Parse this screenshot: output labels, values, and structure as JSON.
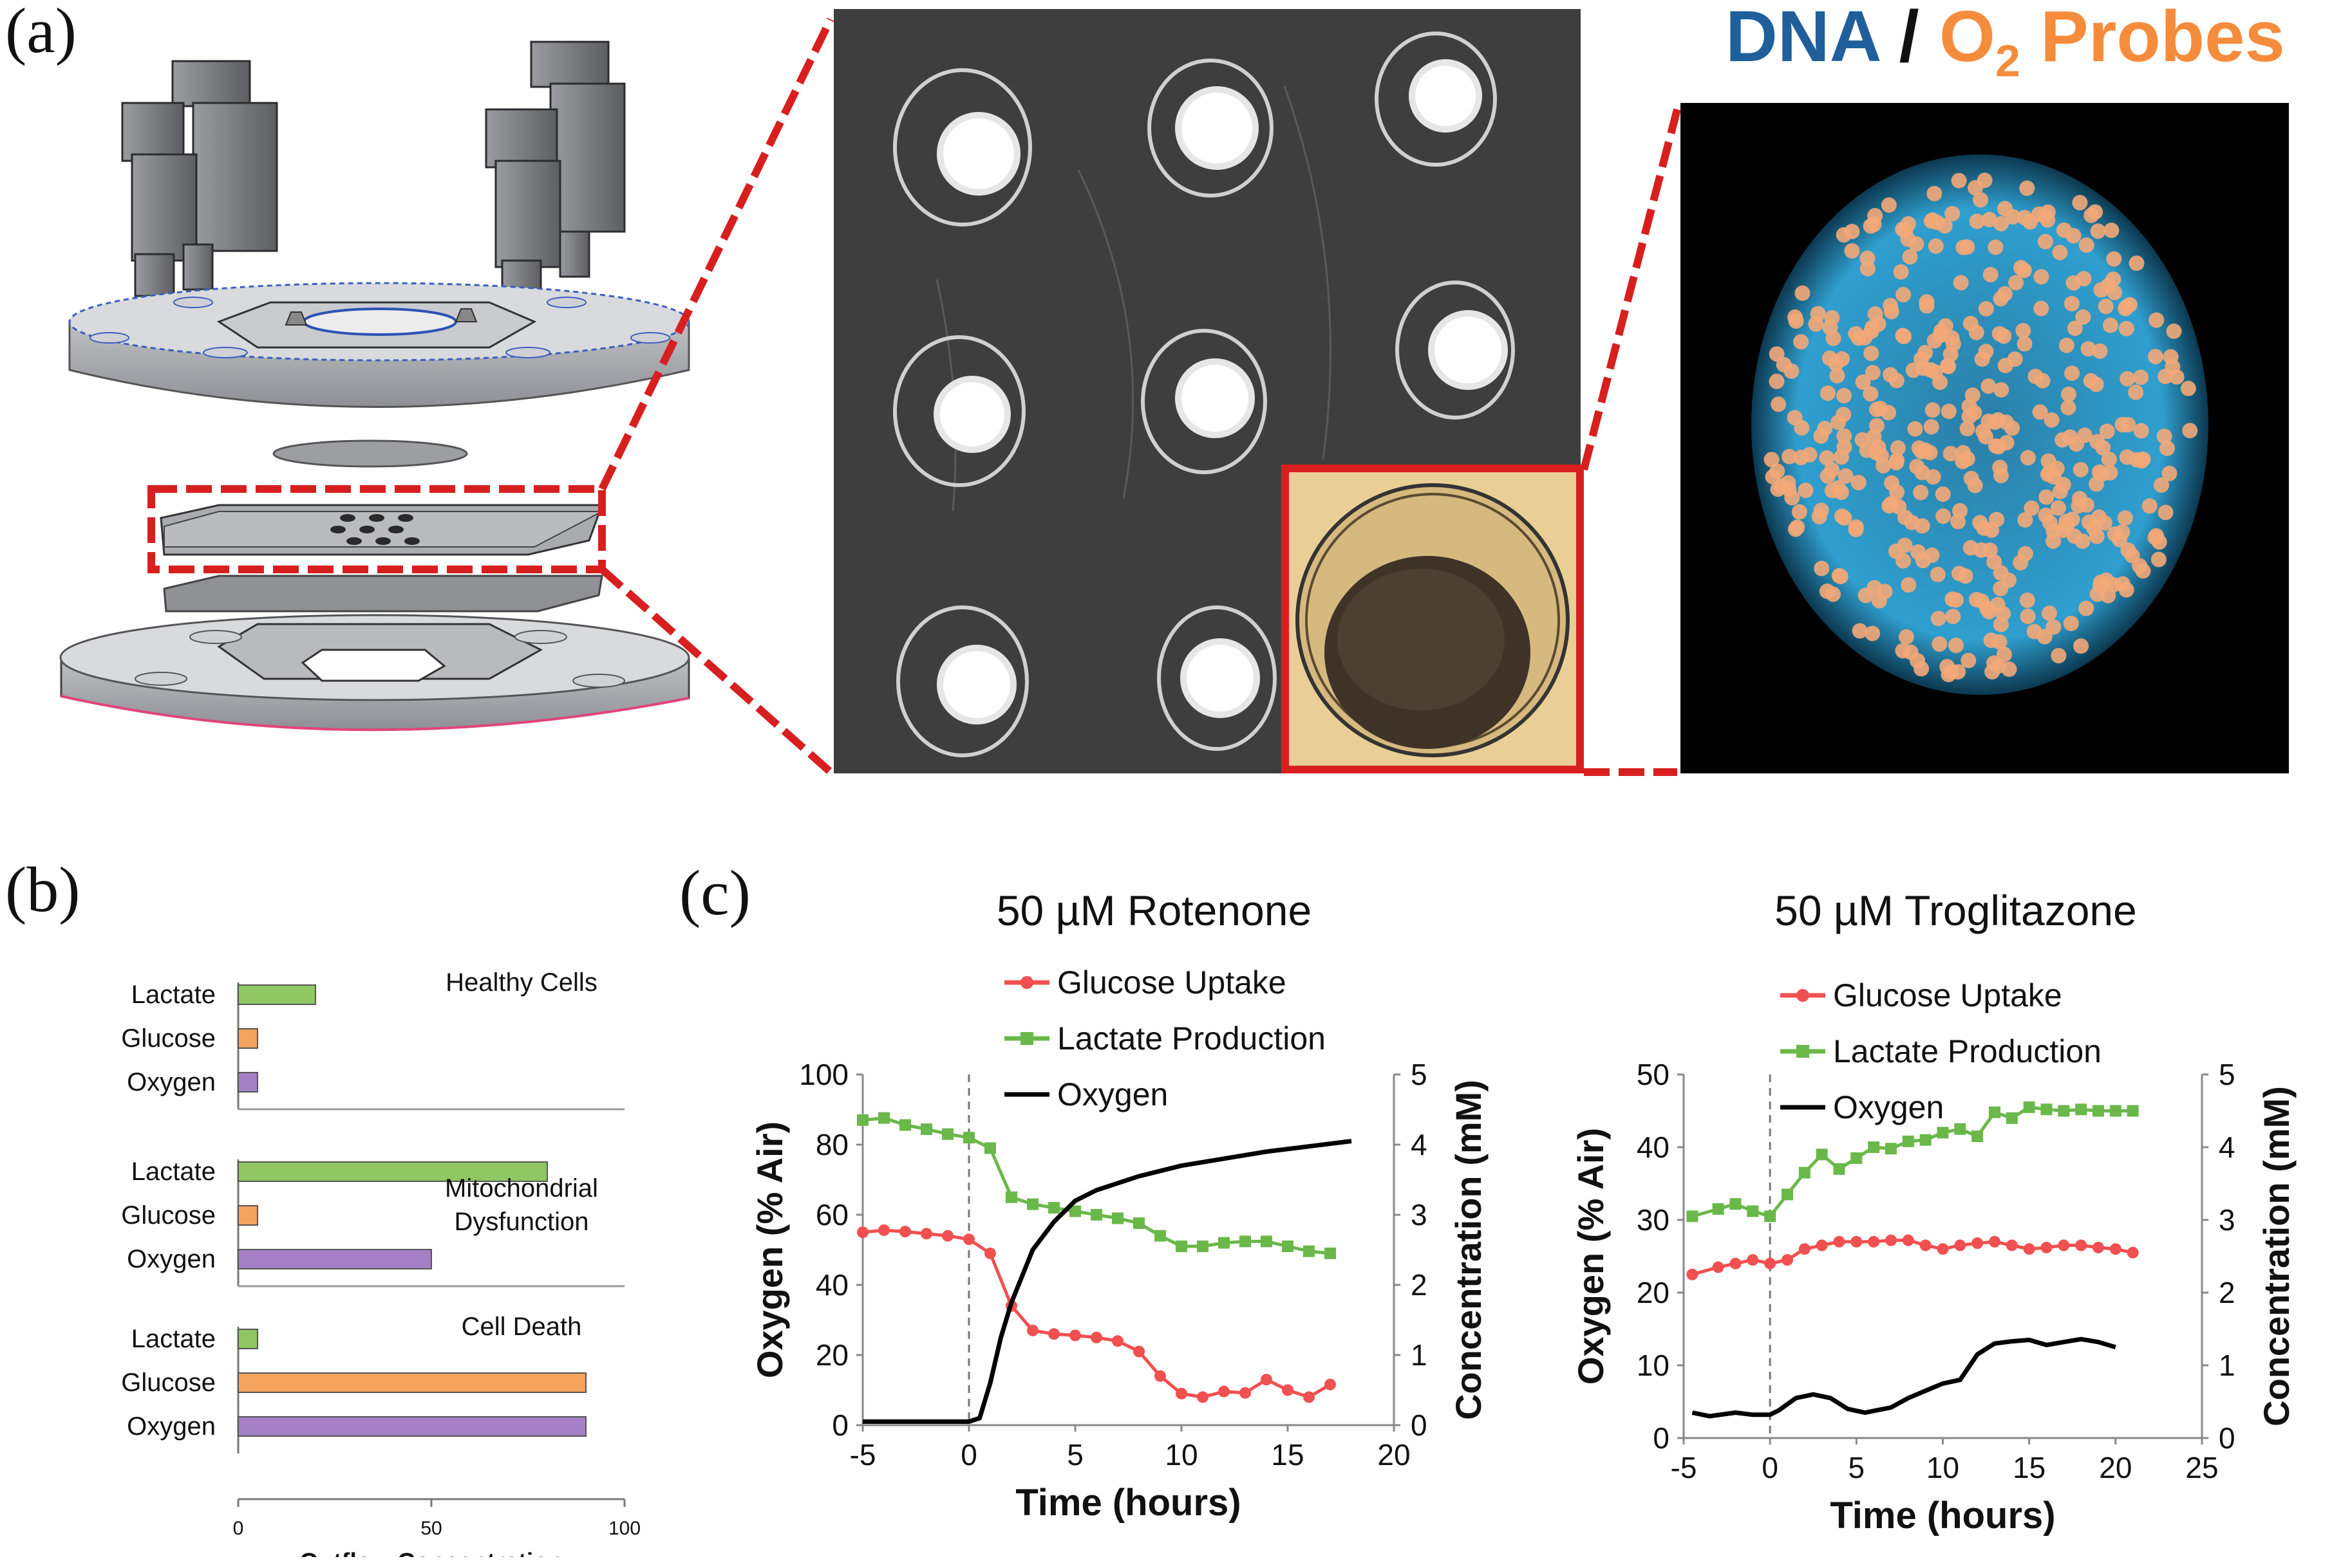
{
  "panels": {
    "a": "(a)",
    "b": "(b)",
    "c": "(c)"
  },
  "fluorescence_title": {
    "dna": "DNA",
    "sep": " / ",
    "o2": "O",
    "o2_sub": "2",
    "probes": " Probes"
  },
  "colors": {
    "dna": "#1f5f9b",
    "o2": "#f58c3c",
    "highlight": "#d81f1f",
    "lactate": "#8fc862",
    "glucose": "#f6a35d",
    "oxygen_bar": "#a57fc6",
    "glucose_line": "#f05050",
    "lactate_line": "#6ab84a",
    "oxygen_line": "#000000"
  },
  "panel_b": {
    "xlabel": "Outflow Concentration",
    "xticks": [
      "0",
      "50",
      "100"
    ],
    "xlim": [
      0,
      100
    ],
    "row_labels": [
      "Lactate",
      "Glucose",
      "Oxygen"
    ],
    "groups": [
      {
        "title_lines": [
          "Healthy Cells"
        ],
        "values": [
          20,
          5,
          5
        ]
      },
      {
        "title_lines": [
          "Mitochondrial",
          "Dysfunction"
        ],
        "values": [
          80,
          5,
          50
        ]
      },
      {
        "title_lines": [
          "Cell Death"
        ],
        "values": [
          5,
          90,
          90
        ]
      }
    ]
  },
  "chart_data": [
    {
      "type": "line",
      "title": "50 µM Rotenone",
      "xlabel": "Time (hours)",
      "ylabel_left": "Oxygen (% Air)",
      "ylabel_right": "Concentration (mM)",
      "xlim": [
        -5,
        20
      ],
      "xticks": [
        "-5",
        "0",
        "5",
        "10",
        "15",
        "20"
      ],
      "ylim_left": [
        0,
        100
      ],
      "yticks_left": [
        "0",
        "20",
        "40",
        "60",
        "80",
        "100"
      ],
      "ylim_right": [
        0,
        5
      ],
      "yticks_right": [
        "0",
        "1",
        "2",
        "3",
        "4",
        "5"
      ],
      "legend": [
        "Glucose Uptake",
        "Lactate Production",
        "Oxygen"
      ],
      "series": [
        {
          "name": "Glucose Uptake",
          "axis": "right",
          "x": [
            -5,
            -4,
            -3,
            -2,
            -1,
            0,
            1,
            2,
            3,
            4,
            5,
            6,
            7,
            8,
            9,
            10,
            11,
            12,
            13,
            14,
            15,
            16,
            17
          ],
          "values": [
            2.75,
            2.78,
            2.76,
            2.73,
            2.7,
            2.65,
            2.45,
            1.7,
            1.35,
            1.3,
            1.28,
            1.25,
            1.2,
            1.05,
            0.7,
            0.45,
            0.4,
            0.48,
            0.46,
            0.65,
            0.5,
            0.4,
            0.58
          ]
        },
        {
          "name": "Lactate Production",
          "axis": "right",
          "x": [
            -5,
            -4,
            -3,
            -2,
            -1,
            0,
            1,
            2,
            3,
            4,
            5,
            6,
            7,
            8,
            9,
            10,
            11,
            12,
            13,
            14,
            15,
            16,
            17
          ],
          "values": [
            4.35,
            4.38,
            4.28,
            4.22,
            4.15,
            4.1,
            3.95,
            3.25,
            3.15,
            3.1,
            3.05,
            3.0,
            2.95,
            2.88,
            2.7,
            2.55,
            2.55,
            2.6,
            2.62,
            2.62,
            2.55,
            2.48,
            2.45
          ]
        },
        {
          "name": "Oxygen",
          "axis": "left",
          "x": [
            -5,
            -2,
            0,
            0.5,
            1,
            1.5,
            2,
            3,
            4,
            5,
            6,
            8,
            10,
            12,
            14,
            16,
            18
          ],
          "values": [
            1,
            1,
            1,
            2,
            12,
            25,
            35,
            50,
            58,
            64,
            67,
            71,
            74,
            76,
            78,
            79.5,
            81
          ]
        }
      ]
    },
    {
      "type": "line",
      "title": "50 µM Troglitazone",
      "xlabel": "Time (hours)",
      "ylabel_left": "Oxygen (% Air)",
      "ylabel_right": "Concentration (mM)",
      "xlim": [
        -5,
        25
      ],
      "xticks": [
        "-5",
        "0",
        "5",
        "10",
        "15",
        "20",
        "25"
      ],
      "ylim_left": [
        0,
        50
      ],
      "yticks_left": [
        "0",
        "10",
        "20",
        "30",
        "40",
        "50"
      ],
      "ylim_right": [
        0,
        5
      ],
      "yticks_right": [
        "0",
        "1",
        "2",
        "3",
        "4",
        "5"
      ],
      "legend": [
        "Glucose Uptake",
        "Lactate Production",
        "Oxygen"
      ],
      "series": [
        {
          "name": "Glucose Uptake",
          "axis": "right",
          "x": [
            -4.5,
            -3,
            -2,
            -1,
            0,
            1,
            2,
            3,
            4,
            5,
            6,
            7,
            8,
            9,
            10,
            11,
            12,
            13,
            14,
            15,
            16,
            17,
            18,
            19,
            20,
            21
          ],
          "values": [
            2.25,
            2.35,
            2.4,
            2.45,
            2.4,
            2.45,
            2.6,
            2.65,
            2.7,
            2.7,
            2.7,
            2.72,
            2.72,
            2.65,
            2.6,
            2.65,
            2.68,
            2.7,
            2.65,
            2.6,
            2.62,
            2.65,
            2.65,
            2.62,
            2.6,
            2.55
          ]
        },
        {
          "name": "Lactate Production",
          "axis": "right",
          "x": [
            -4.5,
            -3,
            -2,
            -1,
            0,
            1,
            2,
            3,
            4,
            5,
            6,
            7,
            8,
            9,
            10,
            11,
            12,
            13,
            14,
            15,
            16,
            17,
            18,
            19,
            20,
            21
          ],
          "values": [
            3.05,
            3.15,
            3.22,
            3.12,
            3.05,
            3.35,
            3.65,
            3.9,
            3.7,
            3.85,
            4.0,
            3.98,
            4.08,
            4.1,
            4.2,
            4.25,
            4.15,
            4.48,
            4.4,
            4.55,
            4.52,
            4.5,
            4.52,
            4.5,
            4.5,
            4.5
          ]
        },
        {
          "name": "Oxygen",
          "axis": "left",
          "x": [
            -4.5,
            -3.5,
            -2,
            -1,
            0,
            0.5,
            1.5,
            2.5,
            3.5,
            4.5,
            5.5,
            7,
            8,
            9,
            10,
            11,
            12,
            13,
            14,
            15,
            16,
            17,
            18,
            19,
            20
          ],
          "values": [
            3.5,
            3.0,
            3.5,
            3.2,
            3.2,
            3.8,
            5.5,
            6.0,
            5.5,
            4.0,
            3.5,
            4.2,
            5.5,
            6.5,
            7.5,
            8.0,
            11.5,
            13.0,
            13.3,
            13.5,
            12.8,
            13.2,
            13.6,
            13.2,
            12.5
          ]
        }
      ]
    }
  ]
}
